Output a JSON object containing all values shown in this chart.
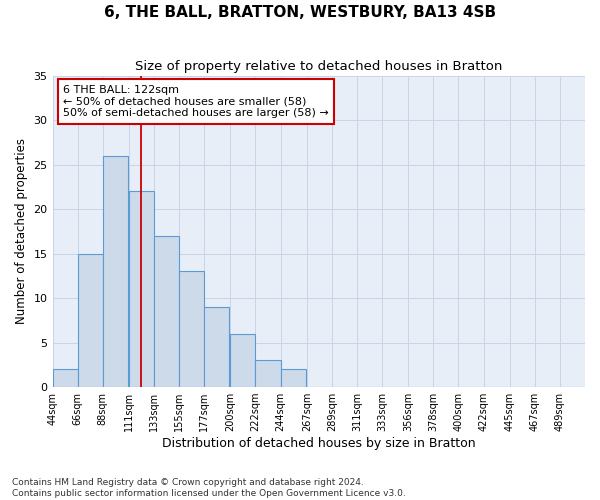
{
  "title": "6, THE BALL, BRATTON, WESTBURY, BA13 4SB",
  "subtitle": "Size of property relative to detached houses in Bratton",
  "xlabel": "Distribution of detached houses by size in Bratton",
  "ylabel": "Number of detached properties",
  "bar_values": [
    2,
    15,
    26,
    22,
    17,
    13,
    9,
    6,
    3,
    2,
    0,
    0,
    0,
    0,
    0,
    0,
    0,
    0,
    0,
    0,
    0
  ],
  "bin_edges": [
    44,
    66,
    88,
    111,
    133,
    155,
    177,
    200,
    222,
    244,
    267,
    289,
    311,
    333,
    356,
    378,
    400,
    422,
    445,
    467,
    489
  ],
  "bin_width": 22,
  "tick_labels": [
    "44sqm",
    "66sqm",
    "88sqm",
    "111sqm",
    "133sqm",
    "155sqm",
    "177sqm",
    "200sqm",
    "222sqm",
    "244sqm",
    "267sqm",
    "289sqm",
    "311sqm",
    "333sqm",
    "356sqm",
    "378sqm",
    "400sqm",
    "422sqm",
    "445sqm",
    "467sqm",
    "489sqm"
  ],
  "bar_color": "#ccdaea",
  "bar_edge_color": "#5b9bd5",
  "vline_x": 122,
  "vline_color": "#cc0000",
  "annotation_text": "6 THE BALL: 122sqm\n← 50% of detached houses are smaller (58)\n50% of semi-detached houses are larger (58) →",
  "annotation_box_facecolor": "#ffffff",
  "annotation_box_edgecolor": "#cc0000",
  "ylim": [
    0,
    35
  ],
  "yticks": [
    0,
    5,
    10,
    15,
    20,
    25,
    30,
    35
  ],
  "grid_color": "#c8d4e8",
  "bg_color": "#e8eef8",
  "footnote": "Contains HM Land Registry data © Crown copyright and database right 2024.\nContains public sector information licensed under the Open Government Licence v3.0.",
  "title_fontsize": 11,
  "subtitle_fontsize": 9.5,
  "tick_fontsize": 7,
  "ylabel_fontsize": 8.5,
  "xlabel_fontsize": 9,
  "footnote_fontsize": 6.5
}
